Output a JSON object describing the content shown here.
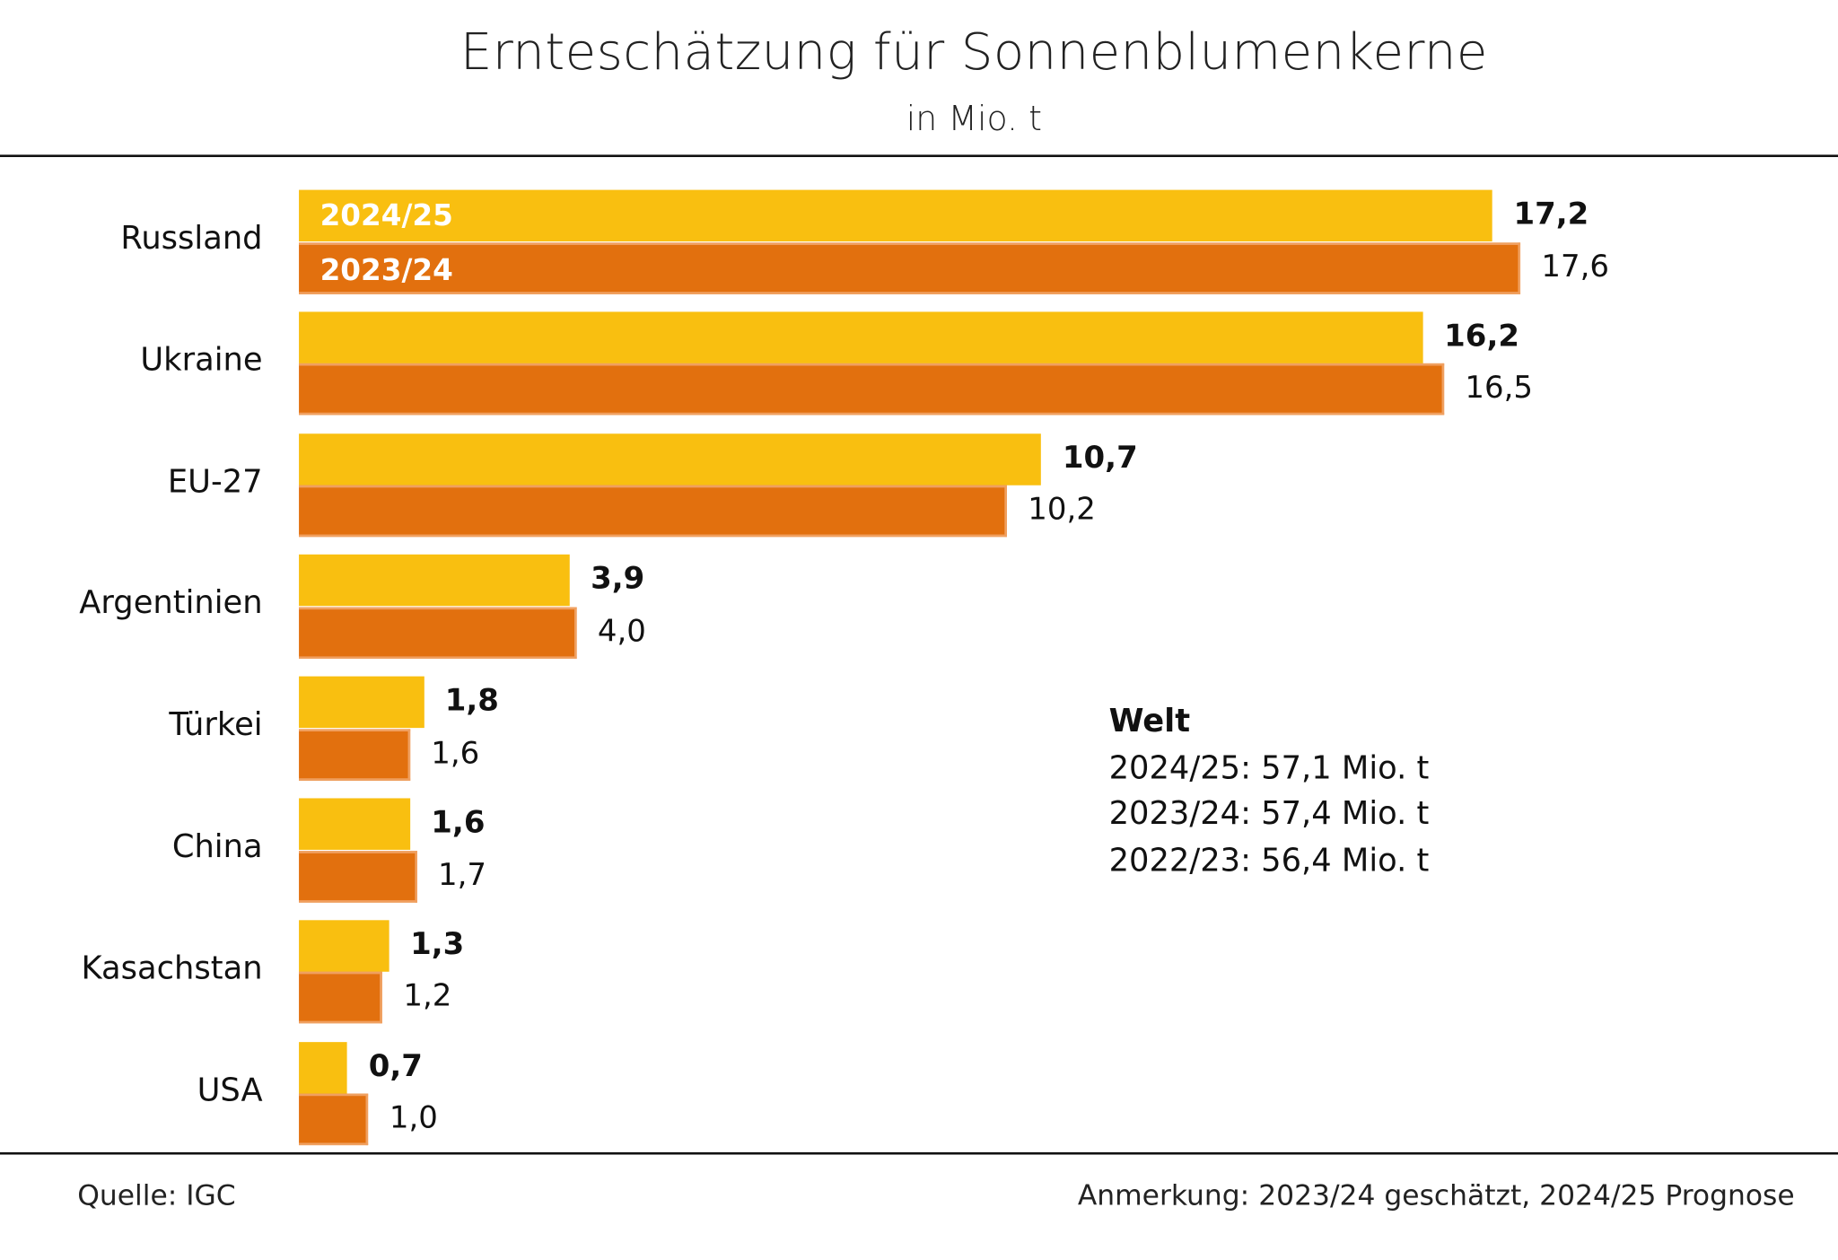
{
  "chart_data": {
    "type": "bar",
    "orientation": "horizontal",
    "title": "Ernteschätzung für Sonnenblumenkerne",
    "subtitle": "in Mio. t",
    "categories": [
      "Russland",
      "Ukraine",
      "EU-27",
      "Argentinien",
      "Türkei",
      "China",
      "Kasachstan",
      "USA"
    ],
    "series": [
      {
        "name": "2024/25",
        "color": "#F9BF10",
        "values": [
          17.2,
          16.2,
          10.7,
          3.9,
          1.8,
          1.6,
          1.3,
          0.7
        ],
        "labels": [
          "17,2",
          "16,2",
          "10,7",
          "3,9",
          "1,8",
          "1,6",
          "1,3",
          "0,7"
        ]
      },
      {
        "name": "2023/24",
        "color": "#E2700E",
        "values": [
          17.6,
          16.5,
          10.2,
          4.0,
          1.6,
          1.7,
          1.2,
          1.0
        ],
        "labels": [
          "17,6",
          "16,5",
          "10,2",
          "4,0",
          "1,6",
          "1,7",
          "1,2",
          "1,0"
        ]
      }
    ],
    "xlim": [
      0,
      18
    ],
    "grid": false
  },
  "welt": {
    "heading": "Welt",
    "lines": [
      "2024/25: 57,1 Mio. t",
      "2023/24: 57,4 Mio. t",
      "2022/23: 56,4 Mio. t"
    ]
  },
  "footer": {
    "source": "Quelle:  IGC",
    "note": "Anmerkung: 2023/24 geschätzt, 2024/25 Prognose"
  }
}
